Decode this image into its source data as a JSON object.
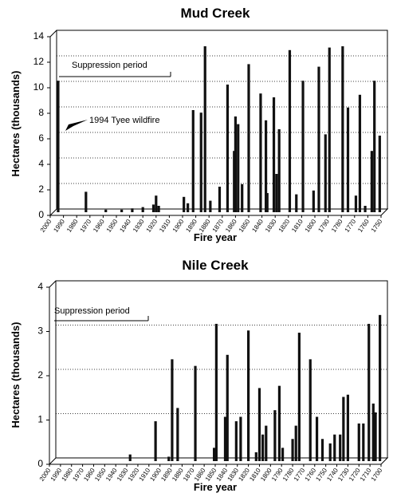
{
  "chart_data": [
    {
      "type": "bar",
      "title": "Mud Creek",
      "x_label": "Fire year",
      "y_label": "Hectares (thousands)",
      "annotations": [
        "Suppression period",
        "1994 Tyee wildfire"
      ],
      "color": "#111111",
      "grid": true,
      "xlim": [
        2000,
        1750
      ],
      "ylim": [
        0,
        14
      ],
      "xticks": [
        2000,
        1990,
        1980,
        1970,
        1960,
        1950,
        1940,
        1930,
        1920,
        1910,
        1900,
        1890,
        1880,
        1870,
        1860,
        1850,
        1840,
        1830,
        1820,
        1810,
        1800,
        1790,
        1780,
        1770,
        1760,
        1750
      ],
      "yticks": [
        0,
        2,
        4,
        6,
        8,
        10,
        12,
        14
      ],
      "x": [
        1994,
        1973,
        1958,
        1946,
        1938,
        1930,
        1922,
        1920,
        1918,
        1899,
        1896,
        1892,
        1886,
        1883,
        1879,
        1872,
        1866,
        1861,
        1860,
        1858,
        1855,
        1850,
        1841,
        1837,
        1836,
        1831,
        1829,
        1827,
        1819,
        1814,
        1809,
        1801,
        1797,
        1792,
        1789,
        1779,
        1775,
        1769,
        1766,
        1762,
        1757,
        1755,
        1751
      ],
      "values": [
        10.3,
        1.6,
        0.2,
        0.2,
        0.3,
        0.4,
        0.6,
        1.3,
        0.5,
        1.2,
        0.7,
        8.0,
        7.8,
        13.0,
        0.9,
        2.0,
        10.0,
        4.8,
        7.5,
        6.9,
        2.2,
        11.6,
        9.3,
        7.2,
        1.5,
        9.0,
        3.0,
        6.5,
        12.7,
        1.4,
        10.3,
        1.7,
        11.4,
        6.1,
        12.9,
        13.0,
        8.2,
        1.3,
        9.2,
        0.5,
        4.8,
        10.3,
        6.0
      ]
    },
    {
      "type": "bar",
      "title": "Nile Creek",
      "x_label": "Fire year",
      "y_label": "Hectares (thousands)",
      "annotations": [
        "Suppression period"
      ],
      "color": "#111111",
      "grid": true,
      "xlim": [
        2000,
        1700
      ],
      "ylim": [
        0,
        4
      ],
      "xticks": [
        2000,
        1990,
        1980,
        1970,
        1960,
        1950,
        1940,
        1930,
        1920,
        1910,
        1900,
        1890,
        1880,
        1870,
        1860,
        1850,
        1840,
        1830,
        1820,
        1810,
        1800,
        1790,
        1780,
        1770,
        1760,
        1750,
        1740,
        1730,
        1720,
        1710,
        1700
      ],
      "yticks": [
        0,
        1,
        2,
        3,
        4
      ],
      "x": [
        1927,
        1904,
        1892,
        1889,
        1884,
        1868,
        1851,
        1849,
        1841,
        1839,
        1831,
        1827,
        1820,
        1813,
        1810,
        1807,
        1804,
        1796,
        1792,
        1789,
        1780,
        1777,
        1774,
        1764,
        1758,
        1753,
        1746,
        1742,
        1737,
        1734,
        1730,
        1720,
        1716,
        1711,
        1707,
        1705,
        1701
      ],
      "values": [
        0.15,
        0.9,
        0.1,
        2.3,
        1.2,
        2.15,
        0.3,
        3.1,
        1.0,
        2.4,
        0.9,
        1.0,
        2.95,
        0.2,
        1.65,
        0.6,
        0.8,
        1.15,
        1.7,
        0.3,
        0.5,
        0.8,
        2.9,
        2.3,
        1.0,
        0.5,
        0.4,
        0.6,
        0.6,
        1.45,
        1.5,
        0.85,
        0.85,
        3.1,
        1.3,
        1.1,
        3.3
      ]
    }
  ]
}
